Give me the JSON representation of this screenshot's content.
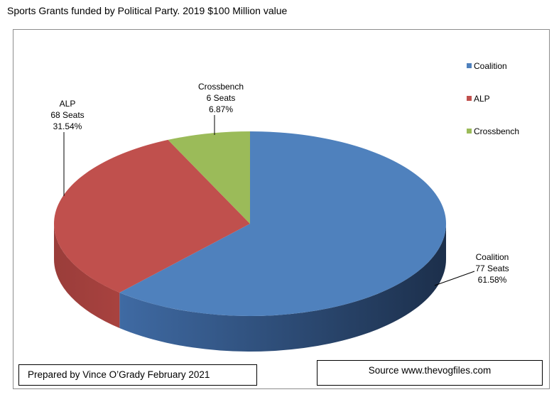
{
  "chart_data": {
    "type": "pie",
    "title": "Sports Grants funded by Political Party. 2019 $100 Million value",
    "slices": [
      {
        "name": "Coalition",
        "seats_label": "77 Seats",
        "percent_label": "61.58%",
        "value": 61.58,
        "color": "#4f81bd",
        "dark": "#1f3552"
      },
      {
        "name": "ALP",
        "seats_label": "68 Seats",
        "percent_label": "31.54%",
        "value": 31.54,
        "color": "#c0504d",
        "dark": "#7a2624"
      },
      {
        "name": "Crossbench",
        "seats_label": "6 Seats",
        "percent_label": "6.87%",
        "value": 6.87,
        "color": "#9bbb59",
        "dark": "#5b7131"
      }
    ],
    "legend": {
      "placement": "top-right",
      "entries": [
        "Coalition",
        "ALP",
        "Crossbench"
      ]
    }
  },
  "footer": {
    "prepared_by": "Prepared by Vince O’Grady February 2021",
    "source": "Source www.thevogfiles.com"
  }
}
